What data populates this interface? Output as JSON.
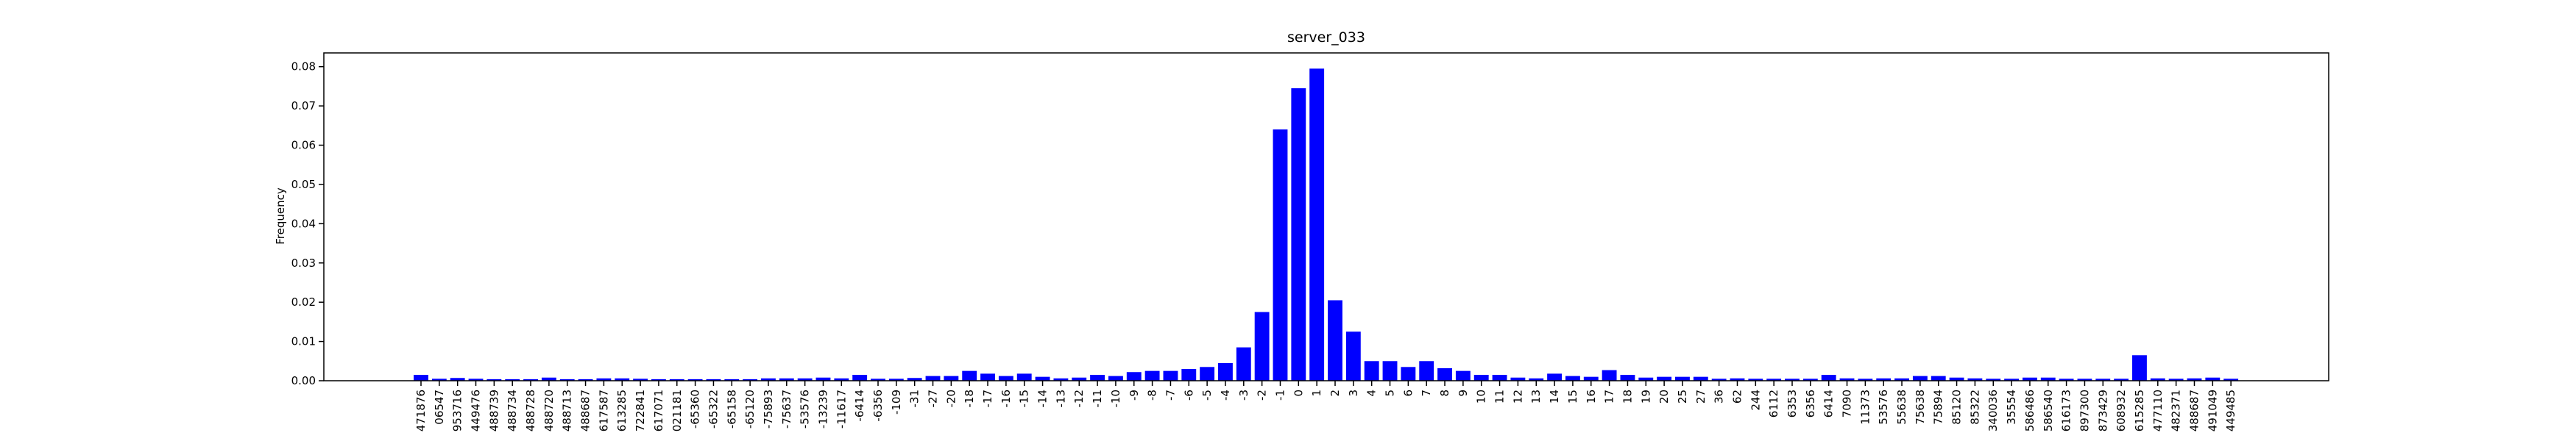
{
  "chart_data": {
    "type": "bar",
    "title": "server_033",
    "ylabel": "Frequency",
    "color": "#0000ff",
    "categories": [
      "471876",
      "06547",
      "953716",
      "449476",
      "488739",
      "488734",
      "488728",
      "488720",
      "488713",
      "488687",
      "617587",
      "613285",
      "722841",
      "617071",
      "021181",
      "-65360",
      "-65322",
      "-65158",
      "-65120",
      "-75893",
      "-75637",
      "-53576",
      "-13239",
      "-11617",
      "-6414",
      "-6356",
      "-109",
      "-31",
      "-27",
      "-20",
      "-18",
      "-17",
      "-16",
      "-15",
      "-14",
      "-13",
      "-12",
      "-11",
      "-10",
      "-9",
      "-8",
      "-7",
      "-6",
      "-5",
      "-4",
      "-3",
      "-2",
      "-1",
      "0",
      "1",
      "2",
      "3",
      "4",
      "5",
      "6",
      "7",
      "8",
      "9",
      "10",
      "11",
      "12",
      "13",
      "14",
      "15",
      "16",
      "17",
      "18",
      "19",
      "20",
      "25",
      "27",
      "36",
      "62",
      "244",
      "6112",
      "6353",
      "6356",
      "6414",
      "7090",
      "11373",
      "53576",
      "55638",
      "75638",
      "75894",
      "85120",
      "85322",
      "340036",
      "35554",
      "586486",
      "586540",
      "616173",
      "897300",
      "873429",
      "608932",
      "615285",
      "477110",
      "482371",
      "488687",
      "491049",
      "449485"
    ],
    "values": [
      0.0015,
      0.0005,
      0.0007,
      0.0005,
      0.0004,
      0.0004,
      0.0004,
      0.0008,
      0.0004,
      0.0004,
      0.0006,
      0.0006,
      0.0005,
      0.0004,
      0.0004,
      0.0004,
      0.0004,
      0.0004,
      0.0004,
      0.0006,
      0.0006,
      0.0006,
      0.0008,
      0.0006,
      0.0015,
      0.0005,
      0.0005,
      0.0007,
      0.0012,
      0.0012,
      0.0025,
      0.0018,
      0.0012,
      0.0018,
      0.001,
      0.0006,
      0.0008,
      0.0015,
      0.0012,
      0.0022,
      0.0025,
      0.0025,
      0.003,
      0.0035,
      0.0045,
      0.0085,
      0.0175,
      0.064,
      0.0745,
      0.0795,
      0.0205,
      0.0125,
      0.005,
      0.005,
      0.0035,
      0.005,
      0.0032,
      0.0025,
      0.0015,
      0.0015,
      0.0008,
      0.0006,
      0.0018,
      0.0012,
      0.001,
      0.0027,
      0.0015,
      0.0008,
      0.001,
      0.001,
      0.001,
      0.0005,
      0.0006,
      0.0005,
      0.0005,
      0.0005,
      0.0005,
      0.0015,
      0.0006,
      0.0005,
      0.0006,
      0.0006,
      0.0012,
      0.0012,
      0.0008,
      0.0006,
      0.0005,
      0.0005,
      0.0008,
      0.0008,
      0.0005,
      0.0005,
      0.0005,
      0.0005,
      0.0065,
      0.0006,
      0.0005,
      0.0006,
      0.0008,
      0.0005
    ],
    "ylim": [
      0,
      0.0835
    ],
    "yticks": [
      {
        "value": 0,
        "label": "0.00"
      },
      {
        "value": 0.01,
        "label": "0.01"
      },
      {
        "value": 0.02,
        "label": "0.02"
      },
      {
        "value": 0.03,
        "label": "0.03"
      },
      {
        "value": 0.04,
        "label": "0.04"
      },
      {
        "value": 0.05,
        "label": "0.05"
      },
      {
        "value": 0.06,
        "label": "0.06"
      },
      {
        "value": 0.07,
        "label": "0.07"
      },
      {
        "value": 0.08,
        "label": "0.08"
      }
    ]
  }
}
